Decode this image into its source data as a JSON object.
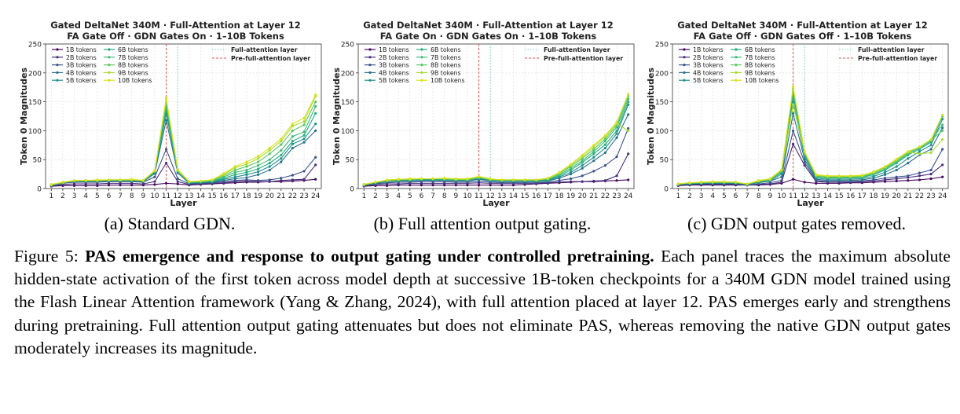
{
  "figure": {
    "label": "Figure 5:",
    "bold": "PAS emergence and response to output gating under controlled pretraining.",
    "body": "Each panel traces the maximum absolute hidden-state activation of the first token across model depth at successive 1B-token checkpoints for a 340M GDN model trained using the Flash Linear Attention framework (Yang & Zhang, 2024), with full attention placed at layer 12. PAS emerges early and strengthens during pretraining. Full attention output gating attenuates but does not eliminate PAS, whereas removing the native GDN output gates moderately increases its magnitude."
  },
  "colors": {
    "series": [
      "#46085c",
      "#472d7b",
      "#3b528b",
      "#2c728e",
      "#21908d",
      "#27ad81",
      "#3fbb76",
      "#5dc863",
      "#aadc32",
      "#d8e219"
    ],
    "full_attention_line": "#7fd4c6",
    "pre_full_attention_line": "#e05555",
    "grid": "#e6e6e6"
  },
  "chart_data": [
    {
      "type": "line",
      "title": "Gated DeltaNet 340M · Full-Attention at Layer 12",
      "subtitle": "FA Gate Off · GDN Gates On · 1–10B Tokens",
      "caption": "(a) Standard GDN.",
      "xlabel": "Layer",
      "ylabel": "Token 0 Magnitudes",
      "ylim": [
        0,
        250
      ],
      "yticks": [
        0,
        50,
        100,
        150,
        200,
        250
      ],
      "grid": true,
      "legend_position": "top-left",
      "vlines": [
        {
          "name": "Full-attention layer",
          "x": 12,
          "style": "dotted",
          "color_key": "full_attention_line"
        },
        {
          "name": "Pre-full-attention layer",
          "x": 11,
          "style": "dashed",
          "color_key": "pre_full_attention_line"
        }
      ],
      "show_pre_vline": true,
      "x": [
        1,
        2,
        3,
        4,
        5,
        6,
        7,
        8,
        9,
        10,
        11,
        12,
        13,
        14,
        15,
        16,
        17,
        18,
        19,
        20,
        21,
        22,
        23,
        24
      ],
      "series": [
        {
          "name": "1B tokens",
          "values": [
            4,
            5,
            5,
            5,
            5,
            6,
            6,
            6,
            6,
            7,
            9,
            8,
            6,
            7,
            8,
            9,
            10,
            11,
            11,
            12,
            12,
            13,
            14,
            16
          ]
        },
        {
          "name": "2B tokens",
          "values": [
            5,
            7,
            8,
            8,
            8,
            9,
            9,
            9,
            8,
            12,
            44,
            12,
            7,
            8,
            9,
            10,
            12,
            13,
            12,
            12,
            14,
            15,
            16,
            41
          ]
        },
        {
          "name": "3B tokens",
          "values": [
            5,
            9,
            11,
            11,
            11,
            12,
            12,
            12,
            11,
            20,
            68,
            17,
            8,
            9,
            10,
            12,
            14,
            15,
            14,
            15,
            18,
            23,
            30,
            54
          ]
        },
        {
          "name": "4B tokens",
          "values": [
            6,
            10,
            12,
            12,
            12,
            13,
            13,
            13,
            12,
            26,
            118,
            27,
            9,
            10,
            11,
            14,
            17,
            19,
            24,
            32,
            46,
            70,
            80,
            100
          ]
        },
        {
          "name": "5B tokens",
          "values": [
            6,
            10,
            13,
            13,
            13,
            14,
            14,
            14,
            13,
            28,
            130,
            30,
            10,
            11,
            12,
            16,
            20,
            24,
            29,
            38,
            52,
            77,
            86,
            112
          ]
        },
        {
          "name": "6B tokens",
          "values": [
            6,
            10,
            13,
            13,
            13,
            14,
            14,
            14,
            13,
            29,
            137,
            30,
            10,
            11,
            12,
            18,
            24,
            28,
            34,
            44,
            58,
            82,
            92,
            130
          ]
        },
        {
          "name": "7B tokens",
          "values": [
            6,
            10,
            13,
            14,
            14,
            14,
            14,
            15,
            13,
            30,
            145,
            30,
            11,
            12,
            13,
            20,
            28,
            32,
            40,
            50,
            66,
            90,
            98,
            142
          ]
        },
        {
          "name": "8B tokens",
          "values": [
            6,
            10,
            13,
            14,
            14,
            15,
            15,
            15,
            14,
            30,
            150,
            31,
            11,
            12,
            14,
            22,
            32,
            38,
            46,
            60,
            76,
            100,
            110,
            150
          ]
        },
        {
          "name": "9B tokens",
          "values": [
            7,
            11,
            14,
            14,
            14,
            15,
            15,
            15,
            14,
            31,
            155,
            32,
            12,
            13,
            15,
            24,
            36,
            42,
            52,
            66,
            82,
            108,
            116,
            160
          ]
        },
        {
          "name": "10B tokens",
          "values": [
            7,
            11,
            14,
            14,
            15,
            15,
            15,
            16,
            14,
            31,
            157,
            33,
            12,
            13,
            15,
            26,
            38,
            46,
            56,
            70,
            86,
            112,
            122,
            162
          ]
        }
      ]
    },
    {
      "type": "line",
      "title": "Gated DeltaNet 340M · Full-Attention at Layer 12",
      "subtitle": "FA Gate On · GDN Gates On · 1–10B Tokens",
      "caption": "(b) Full attention output gating.",
      "xlabel": "Layer",
      "ylabel": "Token 0 Magnitudes",
      "ylim": [
        0,
        250
      ],
      "yticks": [
        0,
        50,
        100,
        150,
        200,
        250
      ],
      "grid": true,
      "legend_position": "top-left",
      "vlines": [
        {
          "name": "Full-attention layer",
          "x": 12,
          "style": "dotted",
          "color_key": "full_attention_line"
        },
        {
          "name": "Pre-full-attention layer",
          "x": 11,
          "style": "dashed",
          "color_key": "pre_full_attention_line"
        }
      ],
      "show_pre_vline": true,
      "x": [
        1,
        2,
        3,
        4,
        5,
        6,
        7,
        8,
        9,
        10,
        11,
        12,
        13,
        14,
        15,
        16,
        17,
        18,
        19,
        20,
        21,
        22,
        23,
        24
      ],
      "series": [
        {
          "name": "1B tokens",
          "values": [
            4,
            5,
            5,
            6,
            6,
            6,
            6,
            6,
            6,
            6,
            6,
            6,
            6,
            6,
            7,
            8,
            9,
            10,
            11,
            12,
            12,
            13,
            14,
            15
          ]
        },
        {
          "name": "2B tokens",
          "values": [
            5,
            7,
            8,
            8,
            9,
            9,
            9,
            9,
            9,
            9,
            10,
            9,
            9,
            9,
            9,
            9,
            10,
            11,
            12,
            12,
            13,
            14,
            22,
            60
          ]
        },
        {
          "name": "3B tokens",
          "values": [
            5,
            8,
            10,
            11,
            11,
            12,
            12,
            12,
            11,
            11,
            13,
            11,
            10,
            10,
            10,
            10,
            11,
            14,
            17,
            22,
            30,
            40,
            55,
            104
          ]
        },
        {
          "name": "4B tokens",
          "values": [
            6,
            9,
            12,
            13,
            13,
            14,
            14,
            14,
            13,
            13,
            16,
            13,
            12,
            12,
            12,
            12,
            13,
            18,
            25,
            35,
            48,
            62,
            88,
            128
          ]
        },
        {
          "name": "5B tokens",
          "values": [
            6,
            10,
            13,
            14,
            14,
            15,
            15,
            15,
            14,
            14,
            17,
            14,
            13,
            13,
            13,
            13,
            14,
            20,
            28,
            40,
            54,
            70,
            95,
            145
          ]
        },
        {
          "name": "6B tokens",
          "values": [
            6,
            10,
            13,
            14,
            15,
            16,
            16,
            16,
            15,
            15,
            18,
            15,
            14,
            14,
            14,
            14,
            15,
            22,
            32,
            45,
            60,
            76,
            100,
            150
          ]
        },
        {
          "name": "7B tokens",
          "values": [
            7,
            11,
            14,
            15,
            15,
            16,
            16,
            16,
            15,
            15,
            19,
            15,
            14,
            14,
            14,
            14,
            16,
            24,
            35,
            48,
            64,
            82,
            106,
            155
          ]
        },
        {
          "name": "8B tokens",
          "values": [
            7,
            11,
            14,
            15,
            16,
            17,
            17,
            17,
            16,
            16,
            20,
            16,
            15,
            15,
            15,
            15,
            17,
            26,
            38,
            52,
            68,
            86,
            110,
            160
          ]
        },
        {
          "name": "9B tokens",
          "values": [
            7,
            11,
            14,
            16,
            16,
            17,
            17,
            17,
            16,
            16,
            20,
            16,
            15,
            15,
            15,
            15,
            17,
            27,
            40,
            55,
            72,
            90,
            112,
            100
          ]
        },
        {
          "name": "10B tokens",
          "values": [
            7,
            11,
            15,
            16,
            17,
            17,
            17,
            18,
            17,
            17,
            21,
            17,
            15,
            15,
            15,
            15,
            18,
            28,
            42,
            58,
            75,
            92,
            115,
            163
          ]
        }
      ]
    },
    {
      "type": "line",
      "title": "Gated DeltaNet 340M · Full-Attention at Layer 12",
      "subtitle": "FA Gate Off · GDN Gates Off · 1–10B Tokens",
      "caption": "(c) GDN output gates removed.",
      "xlabel": "Layer",
      "ylabel": "Token 0 Magnitudes",
      "ylim": [
        0,
        250
      ],
      "yticks": [
        0,
        50,
        100,
        150,
        200,
        250
      ],
      "grid": true,
      "legend_position": "top-left",
      "vlines": [
        {
          "name": "Full-attention layer",
          "x": 12,
          "style": "dotted",
          "color_key": "full_attention_line"
        },
        {
          "name": "Pre-full-attention layer",
          "x": 11,
          "style": "dashed",
          "color_key": "pre_full_attention_line"
        }
      ],
      "show_pre_vline": true,
      "x": [
        1,
        2,
        3,
        4,
        5,
        6,
        7,
        8,
        9,
        10,
        11,
        12,
        13,
        14,
        15,
        16,
        17,
        18,
        19,
        20,
        21,
        22,
        23,
        24
      ],
      "series": [
        {
          "name": "1B tokens",
          "values": [
            5,
            6,
            6,
            6,
            6,
            6,
            6,
            6,
            7,
            9,
            16,
            11,
            9,
            9,
            9,
            10,
            10,
            11,
            12,
            13,
            14,
            15,
            17,
            20
          ]
        },
        {
          "name": "2B tokens",
          "values": [
            6,
            7,
            7,
            7,
            7,
            7,
            6,
            7,
            8,
            11,
            77,
            40,
            12,
            11,
            11,
            11,
            12,
            13,
            15,
            17,
            19,
            22,
            25,
            41
          ]
        },
        {
          "name": "3B tokens",
          "values": [
            6,
            7,
            8,
            8,
            8,
            8,
            6,
            8,
            10,
            14,
            100,
            45,
            14,
            12,
            12,
            12,
            13,
            15,
            18,
            20,
            22,
            27,
            32,
            68
          ]
        },
        {
          "name": "4B tokens",
          "values": [
            7,
            8,
            9,
            9,
            9,
            9,
            7,
            10,
            13,
            20,
            130,
            50,
            16,
            14,
            14,
            14,
            15,
            18,
            24,
            32,
            44,
            58,
            68,
            105
          ]
        },
        {
          "name": "5B tokens",
          "values": [
            7,
            9,
            9,
            10,
            10,
            10,
            7,
            11,
            14,
            25,
            150,
            55,
            18,
            16,
            16,
            16,
            17,
            21,
            28,
            38,
            52,
            64,
            75,
            120
          ]
        },
        {
          "name": "6B tokens",
          "values": [
            7,
            9,
            10,
            10,
            10,
            10,
            7,
            12,
            15,
            28,
            160,
            58,
            20,
            18,
            18,
            18,
            19,
            24,
            32,
            44,
            58,
            68,
            80,
            125
          ]
        },
        {
          "name": "7B tokens",
          "values": [
            8,
            9,
            10,
            11,
            11,
            10,
            8,
            12,
            15,
            30,
            168,
            60,
            21,
            19,
            19,
            19,
            20,
            25,
            34,
            46,
            60,
            70,
            82,
            110
          ]
        },
        {
          "name": "8B tokens",
          "values": [
            8,
            10,
            10,
            11,
            11,
            11,
            8,
            13,
            16,
            31,
            172,
            62,
            22,
            20,
            20,
            20,
            21,
            27,
            36,
            48,
            62,
            72,
            84,
            100
          ]
        },
        {
          "name": "9B tokens",
          "values": [
            8,
            10,
            11,
            11,
            11,
            11,
            8,
            13,
            16,
            32,
            145,
            63,
            23,
            21,
            21,
            21,
            22,
            28,
            37,
            50,
            63,
            60,
            62,
            85
          ]
        },
        {
          "name": "10B tokens",
          "values": [
            8,
            10,
            11,
            12,
            12,
            11,
            8,
            14,
            17,
            33,
            176,
            64,
            24,
            22,
            22,
            22,
            23,
            29,
            38,
            51,
            64,
            72,
            85,
            127
          ]
        }
      ]
    }
  ]
}
